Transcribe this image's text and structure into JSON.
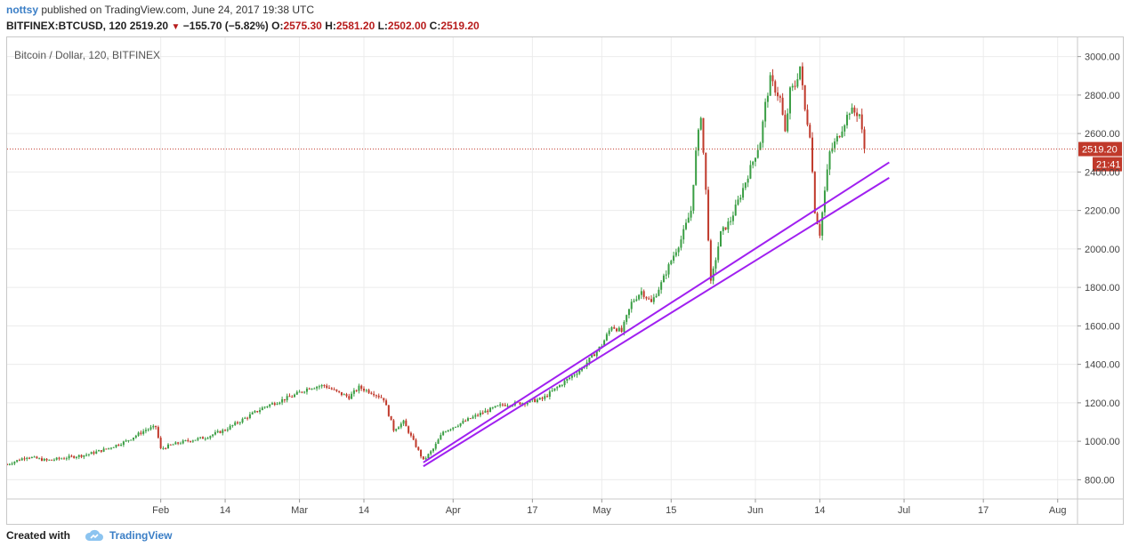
{
  "header": {
    "author": "nottsy",
    "published_text": "published on TradingView.com, June 24, 2017 19:38 UTC",
    "symbol": "BITFINEX:BTCUSD, 120",
    "last": "2519.20",
    "change": "−155.70 (−5.82%)",
    "o_label": "O:",
    "o_value": "2575.30",
    "h_label": "H:",
    "h_value": "2581.20",
    "l_label": "L:",
    "l_value": "2502.00",
    "c_label": "C:",
    "c_value": "2519.20"
  },
  "footer": {
    "created_with": "Created with",
    "brand": "TradingView"
  },
  "colors": {
    "up": "#3a9e44",
    "down": "#c0392b",
    "trendline": "#a020f0",
    "price_line": "#c0392b",
    "accent": "#3a7ec6"
  },
  "chart_data": {
    "type": "candlestick",
    "title": "Bitcoin / Dollar, 120, BITFINEX",
    "ylim": [
      700,
      3100
    ],
    "y_ticks": [
      800,
      1000,
      1200,
      1400,
      1600,
      1800,
      2000,
      2200,
      2400,
      2600,
      2800,
      3000
    ],
    "y_tick_labels": [
      "800.00",
      "1000.00",
      "1200.00",
      "1400.00",
      "1600.00",
      "1800.00",
      "2000.00",
      "2200.00",
      "2400.00",
      "2600.00",
      "2800.00",
      "3000.00"
    ],
    "x_range_days": [
      0,
      216
    ],
    "x_ticks": [
      {
        "label": "Feb",
        "day": 31
      },
      {
        "label": "14",
        "day": 44
      },
      {
        "label": "Mar",
        "day": 59
      },
      {
        "label": "14",
        "day": 72
      },
      {
        "label": "Apr",
        "day": 90
      },
      {
        "label": "17",
        "day": 106
      },
      {
        "label": "May",
        "day": 120
      },
      {
        "label": "15",
        "day": 134
      },
      {
        "label": "Jun",
        "day": 151
      },
      {
        "label": "14",
        "day": 164
      },
      {
        "label": "Jul",
        "day": 181
      },
      {
        "label": "17",
        "day": 197
      },
      {
        "label": "Aug",
        "day": 212
      }
    ],
    "last_price": 2519.2,
    "last_price_label": "2519.20",
    "countdown_label": "21:41",
    "trendlines": [
      {
        "name": "upper",
        "from": {
          "day": 84,
          "price": 890
        },
        "to": {
          "day": 178,
          "price": 2450
        }
      },
      {
        "name": "lower",
        "from": {
          "day": 84,
          "price": 870
        },
        "to": {
          "day": 178,
          "price": 2370
        }
      }
    ],
    "price_path": [
      [
        0,
        880
      ],
      [
        4,
        920
      ],
      [
        8,
        900
      ],
      [
        12,
        915
      ],
      [
        16,
        930
      ],
      [
        20,
        960
      ],
      [
        24,
        1000
      ],
      [
        28,
        1060
      ],
      [
        30,
        1075
      ],
      [
        31,
        960
      ],
      [
        33,
        980
      ],
      [
        36,
        1000
      ],
      [
        40,
        1020
      ],
      [
        44,
        1060
      ],
      [
        48,
        1120
      ],
      [
        52,
        1180
      ],
      [
        55,
        1210
      ],
      [
        58,
        1240
      ],
      [
        61,
        1280
      ],
      [
        64,
        1290
      ],
      [
        67,
        1250
      ],
      [
        69,
        1230
      ],
      [
        71,
        1280
      ],
      [
        74,
        1250
      ],
      [
        76,
        1220
      ],
      [
        78,
        1060
      ],
      [
        80,
        1100
      ],
      [
        82,
        1000
      ],
      [
        84,
        900
      ],
      [
        86,
        960
      ],
      [
        88,
        1050
      ],
      [
        92,
        1100
      ],
      [
        96,
        1150
      ],
      [
        100,
        1190
      ],
      [
        104,
        1200
      ],
      [
        108,
        1220
      ],
      [
        112,
        1300
      ],
      [
        116,
        1380
      ],
      [
        118,
        1440
      ],
      [
        120,
        1500
      ],
      [
        122,
        1600
      ],
      [
        124,
        1570
      ],
      [
        126,
        1720
      ],
      [
        128,
        1780
      ],
      [
        130,
        1720
      ],
      [
        132,
        1820
      ],
      [
        134,
        1940
      ],
      [
        136,
        2050
      ],
      [
        138,
        2200
      ],
      [
        139,
        2500
      ],
      [
        140,
        2700
      ],
      [
        141,
        2300
      ],
      [
        142,
        1820
      ],
      [
        143,
        1950
      ],
      [
        144,
        2080
      ],
      [
        146,
        2150
      ],
      [
        148,
        2280
      ],
      [
        150,
        2420
      ],
      [
        152,
        2560
      ],
      [
        153,
        2750
      ],
      [
        154,
        2880
      ],
      [
        156,
        2780
      ],
      [
        157,
        2600
      ],
      [
        158,
        2820
      ],
      [
        159,
        2850
      ],
      [
        160,
        2950
      ],
      [
        161,
        2720
      ],
      [
        162,
        2600
      ],
      [
        163,
        2200
      ],
      [
        164,
        2080
      ],
      [
        165,
        2300
      ],
      [
        166,
        2500
      ],
      [
        168,
        2600
      ],
      [
        170,
        2720
      ],
      [
        172,
        2700
      ],
      [
        173,
        2519
      ]
    ]
  }
}
